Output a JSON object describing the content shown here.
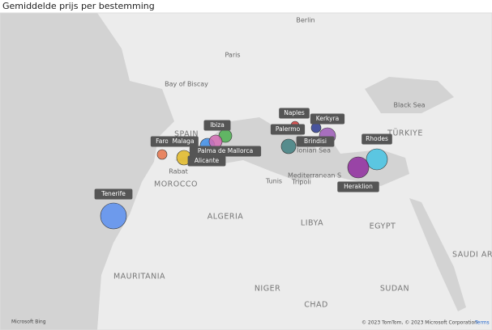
{
  "title": "Gemiddelde prijs per bestemming",
  "destinations": [
    {
      "label": "Faro",
      "color": "#e8734a"
    },
    {
      "label": "Malaga",
      "color": "#e2b824"
    },
    {
      "label": "Alicante",
      "color": "#3d8de8"
    },
    {
      "label": "Ibiza",
      "color": "#4caf50"
    },
    {
      "label": "Palma de Mallorca",
      "color": "#d46cb4"
    },
    {
      "label": "Naples",
      "color": "#d63b3b"
    },
    {
      "label": "Palermo",
      "color": "#3f7f80"
    },
    {
      "label": "Kerkyra",
      "color": "#2b3a8f"
    },
    {
      "label": "Brindisi",
      "color": "#9b59b6"
    },
    {
      "label": "Rhodes",
      "color": "#45c3e3"
    },
    {
      "label": "Heraklion",
      "color": "#8e2a9e"
    },
    {
      "label": "Tenerife",
      "color": "#5b8ff0"
    }
  ],
  "map_labels": {
    "cities": [
      "Berlin",
      "Paris",
      "Rabat",
      "Tunis",
      "Tripoli"
    ],
    "countries": [
      "SPAIN",
      "MOROCCO",
      "ALGERIA",
      "LIBYA",
      "EGYPT",
      "NIGER",
      "CHAD",
      "SUDAN",
      "MAURITANIA",
      "TÜRKIYE",
      "SAUDI AR"
    ],
    "seas": [
      "Bay of Biscay",
      "Ionian Sea",
      "Mediterranean S",
      "Black Sea"
    ]
  },
  "attribution": {
    "bing": "Microsoft Bing",
    "copyright": "© 2023 TomTom, © 2023 Microsoft Corporation",
    "terms": "Terms"
  }
}
